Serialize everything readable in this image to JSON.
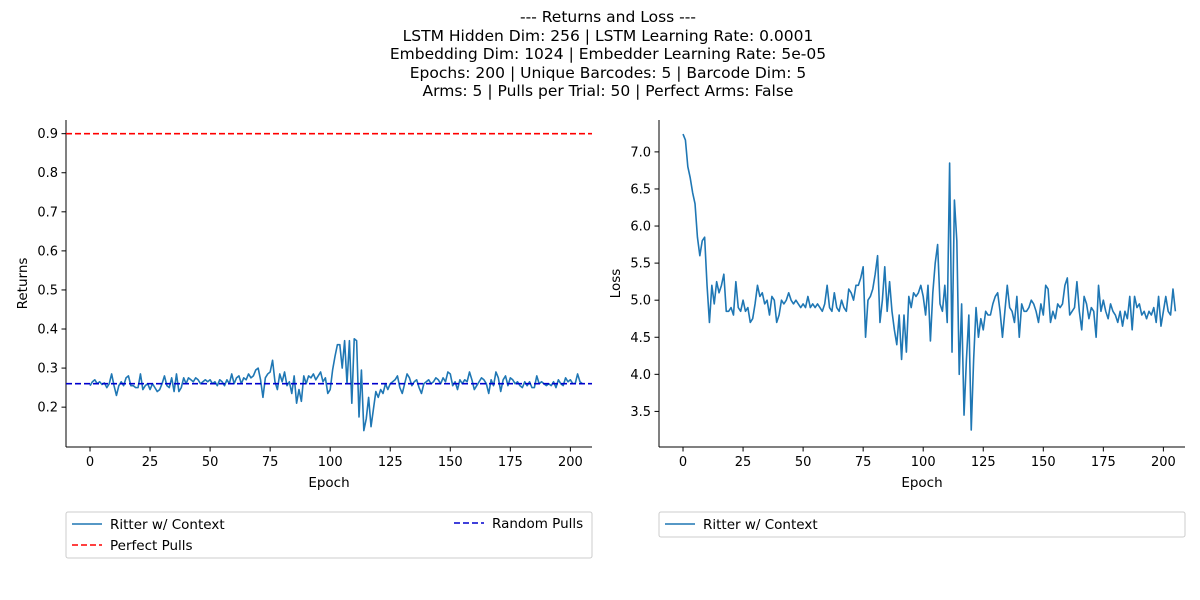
{
  "figure": {
    "title_lines": [
      "--- Returns and Loss ---",
      "LSTM Hidden Dim: 256 | LSTM Learning Rate: 0.0001",
      "Embedding Dim: 1024 | Embedder Learning Rate: 5e-05",
      "Epochs: 200 | Unique Barcodes: 5 | Barcode Dim: 5",
      "Arms: 5 | Pulls per Trial: 50 | Perfect Arms: False"
    ]
  },
  "colors": {
    "series": "#1f77b4",
    "perfect": "#ff0000",
    "random": "#0000cd"
  },
  "chart_data": [
    {
      "type": "line",
      "xlabel": "Epoch",
      "ylabel": "Returns",
      "xlim": [
        -10,
        209
      ],
      "ylim": [
        0.098,
        0.935
      ],
      "xticks": [
        0,
        25,
        50,
        75,
        100,
        125,
        150,
        175,
        200
      ],
      "yticks": [
        0.2,
        0.3,
        0.4,
        0.5,
        0.6,
        0.7,
        0.8,
        0.9
      ],
      "grid": false,
      "legend": "below",
      "hlines": [
        {
          "name": "Perfect Pulls",
          "y": 0.9,
          "color": "#ff0000",
          "style": "dashed"
        },
        {
          "name": "Random Pulls",
          "y": 0.26,
          "color": "#0000cd",
          "style": "dashed"
        }
      ],
      "series": [
        {
          "name": "Ritter w/ Context",
          "x_start": 0,
          "values": [
            0.255,
            0.265,
            0.27,
            0.26,
            0.265,
            0.258,
            0.262,
            0.25,
            0.26,
            0.285,
            0.255,
            0.23,
            0.255,
            0.265,
            0.255,
            0.275,
            0.28,
            0.255,
            0.255,
            0.25,
            0.25,
            0.285,
            0.245,
            0.255,
            0.26,
            0.245,
            0.26,
            0.25,
            0.24,
            0.245,
            0.26,
            0.28,
            0.255,
            0.25,
            0.275,
            0.24,
            0.285,
            0.24,
            0.25,
            0.275,
            0.26,
            0.275,
            0.27,
            0.265,
            0.275,
            0.27,
            0.26,
            0.265,
            0.27,
            0.265,
            0.27,
            0.26,
            0.265,
            0.255,
            0.27,
            0.265,
            0.255,
            0.27,
            0.26,
            0.285,
            0.26,
            0.275,
            0.28,
            0.26,
            0.275,
            0.27,
            0.285,
            0.275,
            0.28,
            0.295,
            0.3,
            0.27,
            0.225,
            0.275,
            0.285,
            0.29,
            0.32,
            0.265,
            0.245,
            0.285,
            0.265,
            0.29,
            0.255,
            0.265,
            0.235,
            0.28,
            0.21,
            0.245,
            0.215,
            0.28,
            0.26,
            0.28,
            0.275,
            0.285,
            0.27,
            0.28,
            0.29,
            0.265,
            0.275,
            0.235,
            0.245,
            0.295,
            0.33,
            0.36,
            0.36,
            0.3,
            0.37,
            0.26,
            0.37,
            0.21,
            0.375,
            0.37,
            0.175,
            0.295,
            0.14,
            0.17,
            0.225,
            0.15,
            0.195,
            0.24,
            0.225,
            0.245,
            0.235,
            0.26,
            0.245,
            0.26,
            0.265,
            0.27,
            0.28,
            0.25,
            0.235,
            0.26,
            0.285,
            0.275,
            0.255,
            0.265,
            0.27,
            0.25,
            0.235,
            0.26,
            0.265,
            0.27,
            0.26,
            0.265,
            0.275,
            0.27,
            0.26,
            0.275,
            0.265,
            0.29,
            0.285,
            0.255,
            0.265,
            0.245,
            0.27,
            0.26,
            0.27,
            0.265,
            0.29,
            0.27,
            0.245,
            0.255,
            0.265,
            0.275,
            0.27,
            0.26,
            0.235,
            0.27,
            0.255,
            0.29,
            0.275,
            0.24,
            0.27,
            0.28,
            0.255,
            0.275,
            0.27,
            0.26,
            0.265,
            0.255,
            0.25,
            0.265,
            0.255,
            0.265,
            0.25,
            0.25,
            0.28,
            0.26,
            0.265,
            0.26,
            0.255,
            0.26,
            0.255,
            0.265,
            0.25,
            0.27,
            0.26,
            0.255,
            0.275,
            0.265,
            0.27,
            0.26,
            0.26,
            0.285,
            0.265,
            0.26
          ]
        }
      ]
    },
    {
      "type": "line",
      "xlabel": "Epoch",
      "ylabel": "Loss",
      "xlim": [
        -10,
        209
      ],
      "ylim": [
        3.02,
        7.43
      ],
      "xticks": [
        0,
        25,
        50,
        75,
        100,
        125,
        150,
        175,
        200
      ],
      "yticks": [
        3.5,
        4.0,
        4.5,
        5.0,
        5.5,
        6.0,
        6.5,
        7.0
      ],
      "grid": false,
      "legend": "below",
      "series": [
        {
          "name": "Ritter w/ Context",
          "x_start": 0,
          "values": [
            7.24,
            7.16,
            6.8,
            6.65,
            6.45,
            6.3,
            5.85,
            5.6,
            5.8,
            5.85,
            5.2,
            4.7,
            5.2,
            4.95,
            5.25,
            5.1,
            5.2,
            5.35,
            4.85,
            4.85,
            4.9,
            4.8,
            5.25,
            4.9,
            4.85,
            5.0,
            4.85,
            4.9,
            4.7,
            4.75,
            4.95,
            5.2,
            5.05,
            5.1,
            4.95,
            5.0,
            4.8,
            5.05,
            5.0,
            4.7,
            4.8,
            5.0,
            4.95,
            5.0,
            5.1,
            5.0,
            4.95,
            5.0,
            4.95,
            4.9,
            4.95,
            4.9,
            5.05,
            4.9,
            4.95,
            4.9,
            4.95,
            4.9,
            4.85,
            4.95,
            5.2,
            4.9,
            4.85,
            5.1,
            4.9,
            4.85,
            5.0,
            4.9,
            4.85,
            5.15,
            5.1,
            5.0,
            5.2,
            5.2,
            5.3,
            5.45,
            4.5,
            5.0,
            5.05,
            5.15,
            5.35,
            5.6,
            4.7,
            5.0,
            5.45,
            4.85,
            5.25,
            4.85,
            4.6,
            4.4,
            4.8,
            4.2,
            4.8,
            4.3,
            5.05,
            4.9,
            5.1,
            5.05,
            5.1,
            5.2,
            5.05,
            4.8,
            5.2,
            4.45,
            5.1,
            5.5,
            5.75,
            4.95,
            4.85,
            5.2,
            4.7,
            6.85,
            4.3,
            6.35,
            5.8,
            4.0,
            4.95,
            3.45,
            4.2,
            4.8,
            3.25,
            4.2,
            4.9,
            4.5,
            4.75,
            4.6,
            4.85,
            4.8,
            4.8,
            4.95,
            5.05,
            5.1,
            4.85,
            4.5,
            4.85,
            5.2,
            4.9,
            4.85,
            4.7,
            5.05,
            4.5,
            4.95,
            4.85,
            4.85,
            4.9,
            5.0,
            4.95,
            4.85,
            4.7,
            4.95,
            4.8,
            5.2,
            5.15,
            4.7,
            4.85,
            4.75,
            4.95,
            4.9,
            4.95,
            5.2,
            5.3,
            4.8,
            4.85,
            4.9,
            5.25,
            4.85,
            4.6,
            5.05,
            4.95,
            4.75,
            4.9,
            4.85,
            4.5,
            5.2,
            4.85,
            5.0,
            4.85,
            4.75,
            4.95,
            4.85,
            4.8,
            4.7,
            4.85,
            4.65,
            4.85,
            4.75,
            5.05,
            4.6,
            5.05,
            4.9,
            4.95,
            4.8,
            4.85,
            4.75,
            4.85,
            4.8,
            4.9,
            4.7,
            5.05,
            4.65,
            4.85,
            5.05,
            4.85,
            4.8,
            5.15,
            4.85
          ]
        }
      ]
    }
  ]
}
